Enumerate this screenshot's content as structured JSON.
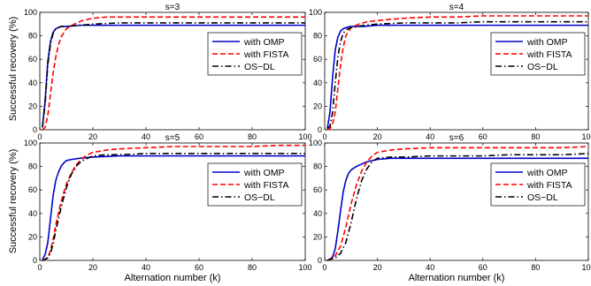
{
  "figure": {
    "ylabel": "Successful recovery (%)",
    "xlabel": "Alternation number (k)"
  },
  "chart_data": [
    {
      "type": "line",
      "title": "s=3",
      "xlim": [
        0,
        100
      ],
      "ylim": [
        0,
        100
      ],
      "xticks": [
        0,
        20,
        40,
        60,
        80,
        100
      ],
      "yticks": [
        0,
        20,
        40,
        60,
        80,
        100
      ],
      "grid": false,
      "legend_position": "right",
      "xlabel": "",
      "ylabel": "Successful recovery (%)",
      "series": [
        {
          "name": "with OMP",
          "color": "#0000cc",
          "dash": "solid",
          "x": [
            1,
            2,
            3,
            4,
            5,
            6,
            7,
            8,
            10,
            15,
            20,
            30,
            40,
            50,
            60,
            70,
            80,
            90,
            100
          ],
          "y": [
            2,
            25,
            58,
            75,
            83,
            86,
            87,
            88,
            88,
            89,
            89,
            89,
            89,
            89,
            89,
            89,
            89,
            89,
            89
          ]
        },
        {
          "name": "with FISTA",
          "color": "#ff0000",
          "dash": "dashed",
          "x": [
            1,
            2,
            3,
            4,
            5,
            6,
            7,
            8,
            10,
            13,
            16,
            20,
            25,
            30,
            40,
            50,
            60,
            70,
            80,
            90,
            100
          ],
          "y": [
            0,
            2,
            12,
            30,
            48,
            62,
            72,
            79,
            86,
            90,
            93,
            95,
            96,
            96,
            96,
            96,
            96,
            96,
            96,
            96,
            96
          ]
        },
        {
          "name": "OS−DL",
          "color": "#000000",
          "dash": "dashdot",
          "x": [
            1,
            2,
            3,
            4,
            5,
            6,
            7,
            8,
            10,
            15,
            20,
            30,
            40,
            50,
            60,
            70,
            80,
            90,
            100
          ],
          "y": [
            2,
            22,
            55,
            73,
            82,
            86,
            87,
            88,
            88,
            89,
            90,
            91,
            91,
            91,
            91,
            91,
            91,
            91,
            91
          ]
        }
      ]
    },
    {
      "type": "line",
      "title": "s=4",
      "xlim": [
        0,
        100
      ],
      "ylim": [
        0,
        100
      ],
      "xticks": [
        0,
        20,
        40,
        60,
        80,
        100
      ],
      "yticks": [
        0,
        20,
        40,
        60,
        80,
        100
      ],
      "grid": false,
      "legend_position": "right",
      "xlabel": "",
      "ylabel": "",
      "series": [
        {
          "name": "with OMP",
          "color": "#0000cc",
          "dash": "solid",
          "x": [
            1,
            2,
            3,
            4,
            5,
            6,
            7,
            8,
            10,
            15,
            20,
            30,
            40,
            50,
            60,
            70,
            80,
            90,
            100
          ],
          "y": [
            1,
            15,
            45,
            68,
            79,
            84,
            86,
            87,
            88,
            88,
            89,
            89,
            89,
            89,
            89,
            89,
            89,
            89,
            89
          ]
        },
        {
          "name": "with FISTA",
          "color": "#ff0000",
          "dash": "dashed",
          "x": [
            1,
            2,
            3,
            4,
            5,
            6,
            7,
            8,
            10,
            13,
            16,
            20,
            25,
            30,
            40,
            50,
            60,
            70,
            80,
            90,
            100
          ],
          "y": [
            0,
            1,
            5,
            15,
            35,
            55,
            70,
            80,
            87,
            90,
            92,
            93,
            94,
            95,
            96,
            96,
            97,
            97,
            97,
            97,
            97
          ]
        },
        {
          "name": "OS−DL",
          "color": "#000000",
          "dash": "dashdot",
          "x": [
            1,
            2,
            3,
            4,
            5,
            6,
            7,
            8,
            10,
            15,
            20,
            30,
            40,
            50,
            60,
            70,
            80,
            90,
            100
          ],
          "y": [
            1,
            3,
            15,
            40,
            62,
            75,
            82,
            85,
            87,
            89,
            90,
            91,
            91,
            91,
            92,
            92,
            92,
            92,
            92
          ]
        }
      ]
    },
    {
      "type": "line",
      "title": "s=5",
      "xlim": [
        0,
        100
      ],
      "ylim": [
        0,
        100
      ],
      "xticks": [
        0,
        20,
        40,
        60,
        80,
        100
      ],
      "yticks": [
        0,
        20,
        40,
        60,
        80,
        100
      ],
      "grid": false,
      "legend_position": "right",
      "xlabel": "Alternation number (k)",
      "ylabel": "Successful recovery (%)",
      "series": [
        {
          "name": "with OMP",
          "color": "#0000cc",
          "dash": "solid",
          "x": [
            1,
            2,
            3,
            4,
            5,
            6,
            7,
            8,
            9,
            10,
            12,
            15,
            20,
            30,
            40,
            50,
            60,
            70,
            80,
            90,
            100
          ],
          "y": [
            1,
            5,
            15,
            35,
            55,
            68,
            75,
            80,
            83,
            85,
            86,
            87,
            88,
            89,
            89,
            89,
            89,
            89,
            89,
            89,
            89
          ]
        },
        {
          "name": "with FISTA",
          "color": "#ff0000",
          "dash": "dashed",
          "x": [
            1,
            2,
            3,
            4,
            5,
            6,
            8,
            10,
            12,
            14,
            16,
            18,
            20,
            25,
            30,
            40,
            50,
            60,
            70,
            80,
            90,
            100
          ],
          "y": [
            0,
            1,
            3,
            8,
            18,
            30,
            50,
            65,
            75,
            82,
            87,
            90,
            92,
            94,
            95,
            96,
            97,
            97,
            97,
            97,
            98,
            98
          ]
        },
        {
          "name": "OS−DL",
          "color": "#000000",
          "dash": "dashdot",
          "x": [
            1,
            2,
            3,
            4,
            5,
            6,
            8,
            10,
            12,
            14,
            16,
            18,
            20,
            25,
            30,
            40,
            50,
            60,
            70,
            80,
            90,
            100
          ],
          "y": [
            0,
            1,
            2,
            6,
            14,
            25,
            45,
            62,
            74,
            81,
            85,
            87,
            89,
            90,
            90,
            91,
            91,
            91,
            91,
            91,
            91,
            91
          ]
        }
      ]
    },
    {
      "type": "line",
      "title": "s=6",
      "xlim": [
        0,
        100
      ],
      "ylim": [
        0,
        100
      ],
      "xticks": [
        0,
        20,
        40,
        60,
        80,
        100
      ],
      "yticks": [
        0,
        20,
        40,
        60,
        80,
        100
      ],
      "grid": false,
      "legend_position": "right",
      "xlabel": "Alternation number (k)",
      "ylabel": "",
      "series": [
        {
          "name": "with OMP",
          "color": "#0000cc",
          "dash": "solid",
          "x": [
            1,
            2,
            3,
            4,
            5,
            6,
            7,
            8,
            9,
            10,
            12,
            14,
            16,
            20,
            25,
            30,
            40,
            50,
            60,
            70,
            80,
            90,
            100
          ],
          "y": [
            0,
            1,
            3,
            10,
            25,
            42,
            58,
            68,
            74,
            77,
            80,
            82,
            84,
            86,
            87,
            87,
            87,
            87,
            87,
            87,
            87,
            87,
            87
          ]
        },
        {
          "name": "with FISTA",
          "color": "#ff0000",
          "dash": "dashed",
          "x": [
            1,
            2,
            4,
            6,
            8,
            10,
            12,
            14,
            16,
            18,
            20,
            25,
            30,
            40,
            50,
            60,
            70,
            80,
            90,
            100
          ],
          "y": [
            0,
            1,
            4,
            12,
            28,
            48,
            64,
            76,
            84,
            89,
            92,
            94,
            95,
            96,
            96,
            96,
            96,
            96,
            96,
            97
          ]
        },
        {
          "name": "OS−DL",
          "color": "#000000",
          "dash": "dashdot",
          "x": [
            1,
            2,
            4,
            6,
            8,
            10,
            12,
            14,
            16,
            18,
            20,
            25,
            30,
            40,
            50,
            60,
            70,
            80,
            90,
            100
          ],
          "y": [
            0,
            1,
            2,
            6,
            15,
            32,
            52,
            68,
            78,
            84,
            87,
            88,
            88,
            89,
            89,
            89,
            90,
            90,
            90,
            91
          ]
        }
      ]
    }
  ]
}
